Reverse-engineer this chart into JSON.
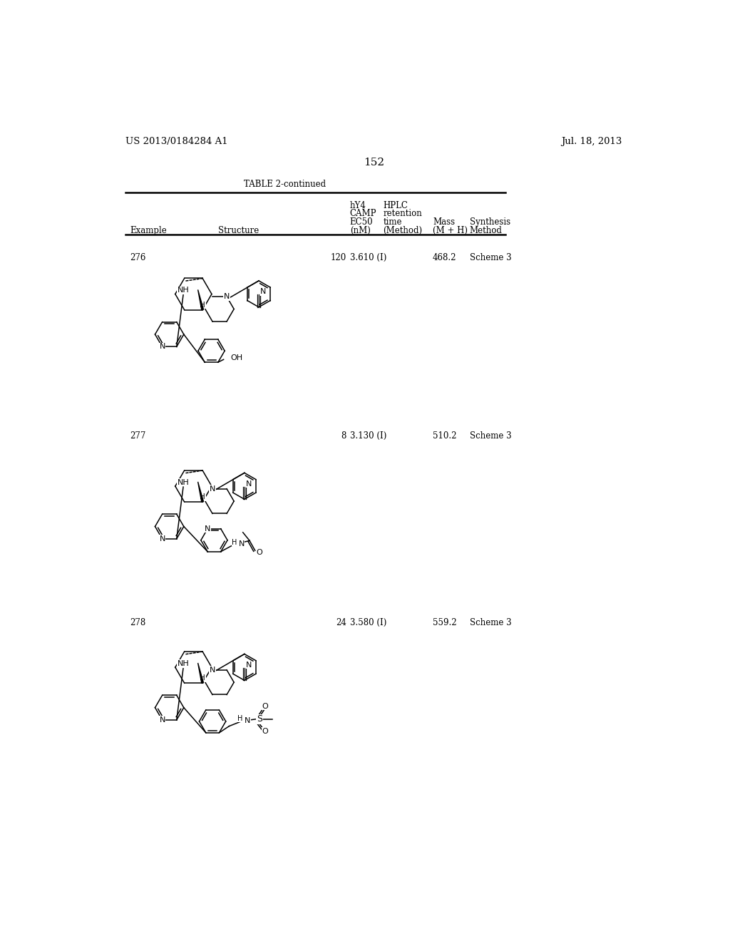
{
  "page_number": "152",
  "patent_number": "US 2013/0184284 A1",
  "patent_date": "Jul. 18, 2013",
  "table_title": "TABLE 2-continued",
  "rows": [
    {
      "example": "276",
      "ec50": "120",
      "hplc": "3.610 (I)",
      "mass": "468.2",
      "synthesis": "Scheme 3"
    },
    {
      "example": "277",
      "ec50": "8",
      "hplc": "3.130 (I)",
      "mass": "510.2",
      "synthesis": "Scheme 3"
    },
    {
      "example": "278",
      "ec50": "24",
      "hplc": "3.580 (I)",
      "mass": "559.2",
      "synthesis": "Scheme 3"
    }
  ],
  "bg_color": "#ffffff",
  "text_color": "#000000"
}
